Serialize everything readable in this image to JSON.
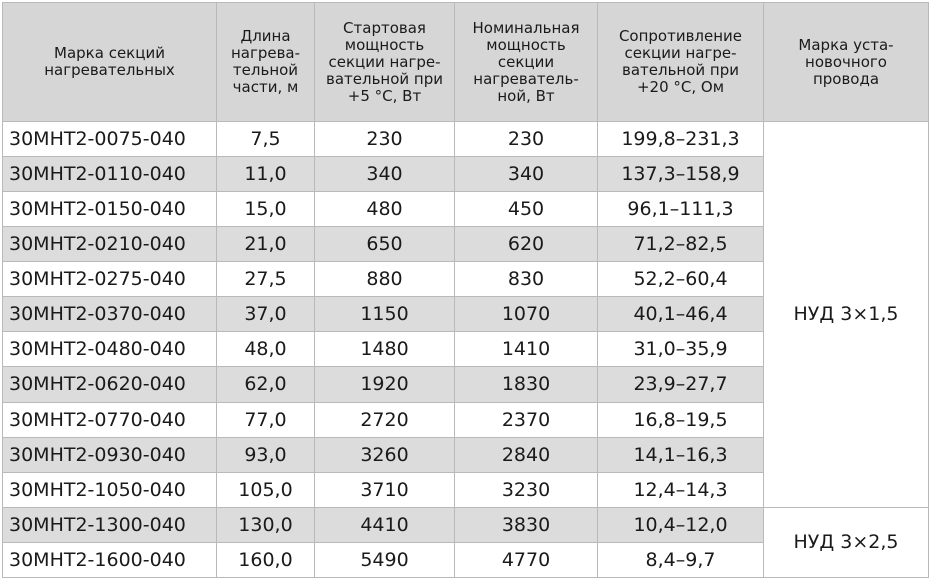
{
  "table": {
    "headers": [
      "Марка секций\nнагревательных",
      "Длина\nнагрева-\nтельной\nчасти,  м",
      "Стартовая\nмощность\nсекции нагре-\nвательной при\n+5 °С, Вт",
      "Номинальная\nмощность\nсекции\nнагреватель-\nной,  Вт",
      "Сопротивление\nсекции нагре-\nвательной при\n+20 °С, Ом",
      "Марка уста-\nновочного\nпровода"
    ],
    "rows": [
      {
        "mark": "30МНТ2-0075-040",
        "length": "7,5",
        "start_power": "230",
        "nominal_power": "230",
        "resistance": "199,8–231,3"
      },
      {
        "mark": "30МНТ2-0110-040",
        "length": "11,0",
        "start_power": "340",
        "nominal_power": "340",
        "resistance": "137,3–158,9"
      },
      {
        "mark": "30МНТ2-0150-040",
        "length": "15,0",
        "start_power": "480",
        "nominal_power": "450",
        "resistance": "96,1–111,3"
      },
      {
        "mark": "30МНТ2-0210-040",
        "length": "21,0",
        "start_power": "650",
        "nominal_power": "620",
        "resistance": "71,2–82,5"
      },
      {
        "mark": "30МНТ2-0275-040",
        "length": "27,5",
        "start_power": "880",
        "nominal_power": "830",
        "resistance": "52,2–60,4"
      },
      {
        "mark": "30МНТ2-0370-040",
        "length": "37,0",
        "start_power": "1150",
        "nominal_power": "1070",
        "resistance": "40,1–46,4"
      },
      {
        "mark": "30МНТ2-0480-040",
        "length": "48,0",
        "start_power": "1480",
        "nominal_power": "1410",
        "resistance": "31,0–35,9"
      },
      {
        "mark": "30МНТ2-0620-040",
        "length": "62,0",
        "start_power": "1920",
        "nominal_power": "1830",
        "resistance": "23,9–27,7"
      },
      {
        "mark": "30МНТ2-0770-040",
        "length": "77,0",
        "start_power": "2720",
        "nominal_power": "2370",
        "resistance": "16,8–19,5"
      },
      {
        "mark": "30МНТ2-0930-040",
        "length": "93,0",
        "start_power": "3260",
        "nominal_power": "2840",
        "resistance": "14,1–16,3"
      },
      {
        "mark": "30МНТ2-1050-040",
        "length": "105,0",
        "start_power": "3710",
        "nominal_power": "3230",
        "resistance": "12,4–14,3"
      },
      {
        "mark": "30МНТ2-1300-040",
        "length": "130,0",
        "start_power": "4410",
        "nominal_power": "3830",
        "resistance": "10,4–12,0"
      },
      {
        "mark": "30МНТ2-1600-040",
        "length": "160,0",
        "start_power": "5490",
        "nominal_power": "4770",
        "resistance": "8,4–9,7"
      }
    ],
    "wire_groups": [
      {
        "label": "НУД 3×1,5",
        "rows": 11
      },
      {
        "label": "НУД 3×2,5",
        "rows": 2
      }
    ]
  },
  "colors": {
    "header_bg": "#d6d6d6",
    "stripe_bg": "#dcdcdc",
    "border": "#b9b9b9"
  }
}
